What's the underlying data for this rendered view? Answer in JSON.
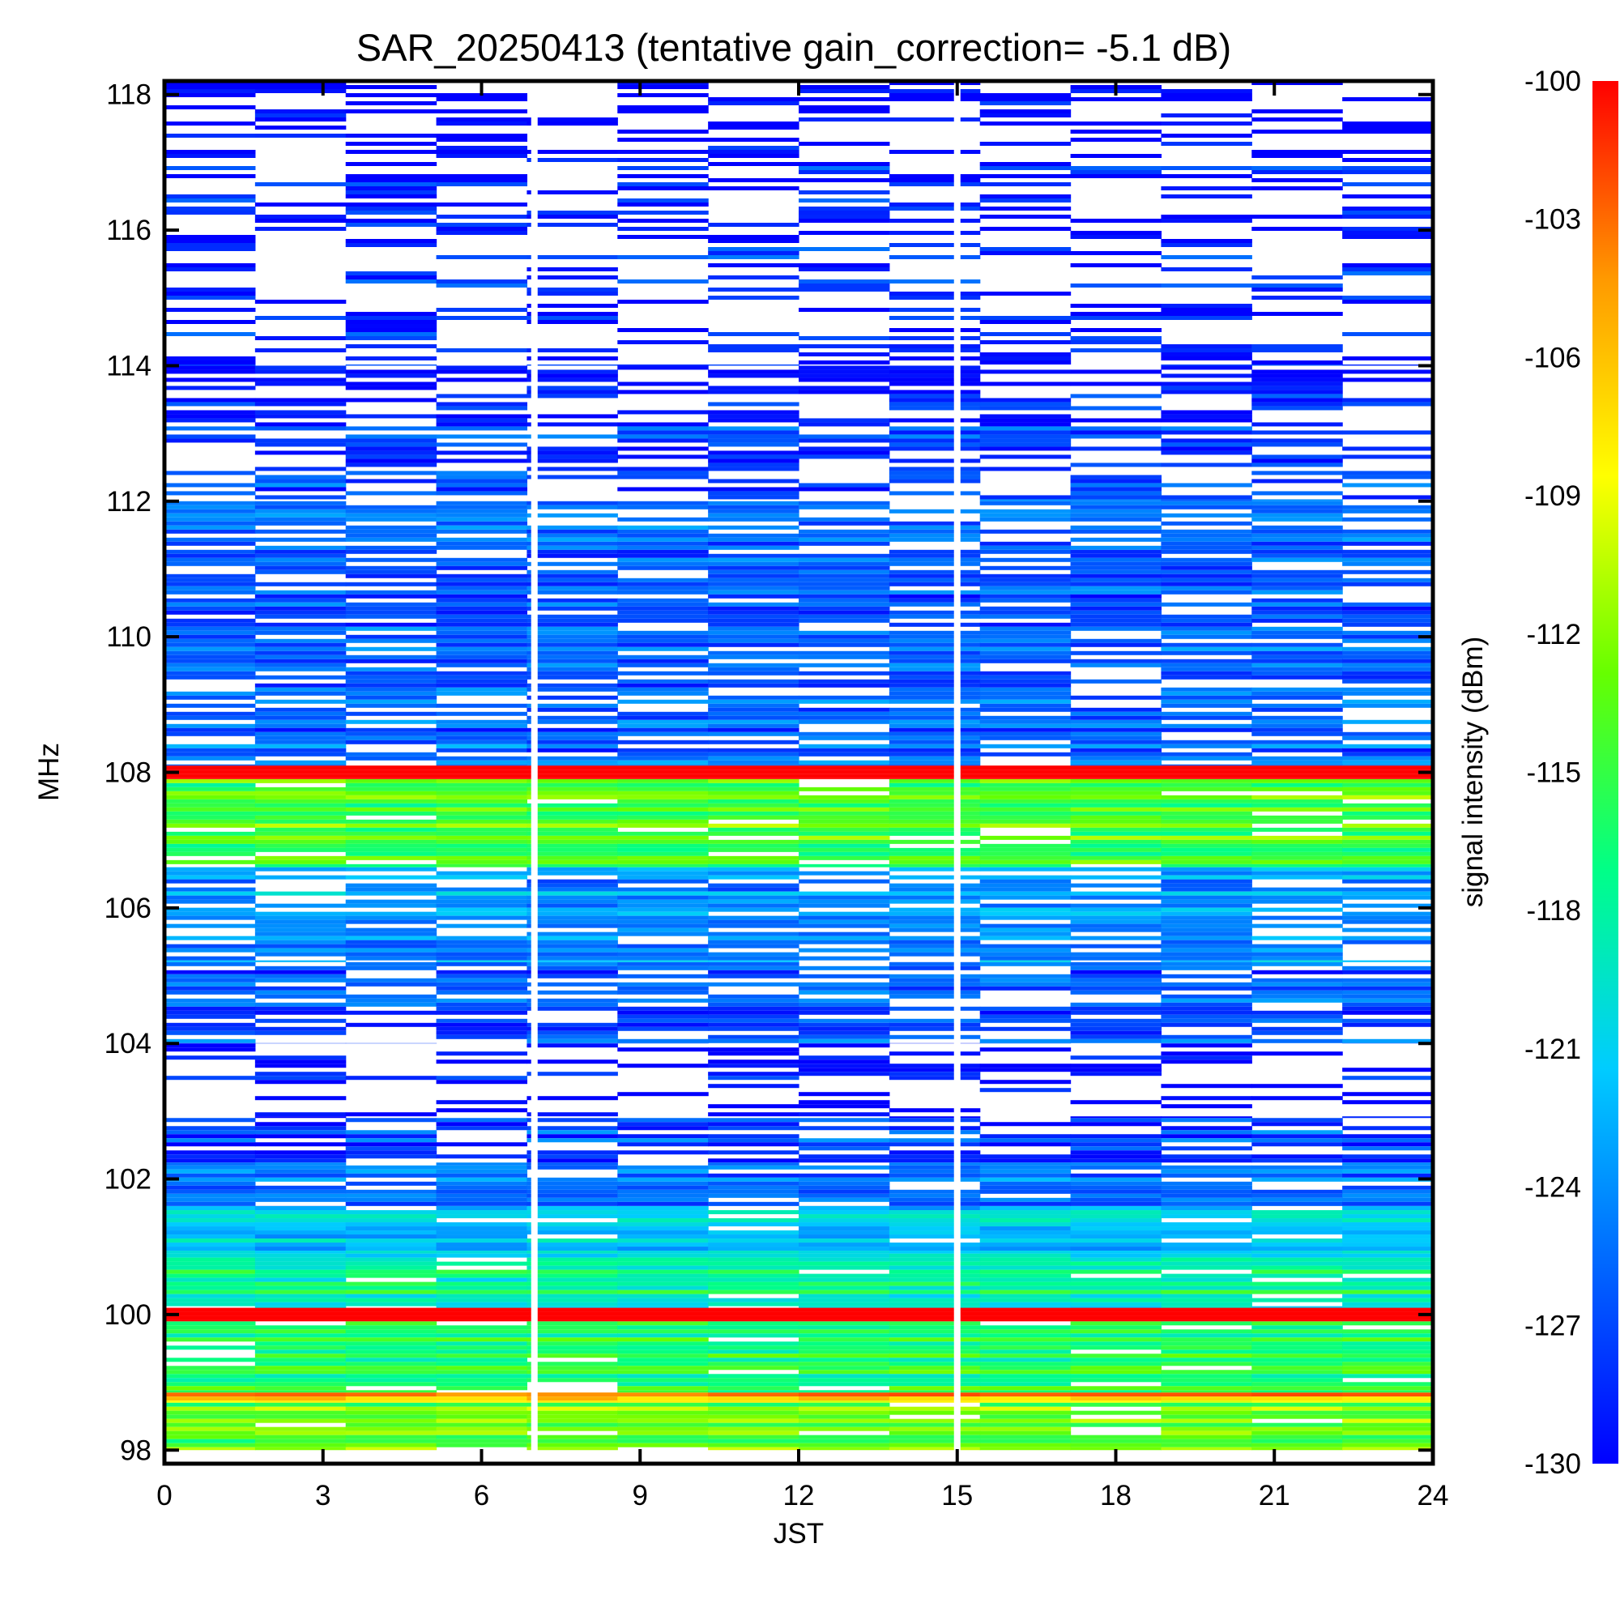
{
  "chart_data": {
    "type": "heatmap",
    "title": "SAR_20250413 (tentative gain_correction= -5.1 dB)",
    "xlabel": "JST",
    "ylabel": "MHz",
    "colorbar_label": "signal intensity (dBm)",
    "xlim": [
      0,
      24
    ],
    "ylim": [
      97.8,
      118.2
    ],
    "x_ticks": [
      "0",
      "3",
      "6",
      "9",
      "12",
      "15",
      "18",
      "21",
      "24"
    ],
    "y_ticks": [
      "98",
      "100",
      "102",
      "104",
      "106",
      "108",
      "110",
      "112",
      "114",
      "116",
      "118"
    ],
    "colorbar_range": [
      -130,
      -100
    ],
    "colorbar_ticks": [
      "-100",
      "-103",
      "-106",
      "-109",
      "-112",
      "-115",
      "-118",
      "-121",
      "-124",
      "-127",
      "-130"
    ],
    "colormap": [
      "#0000ff",
      "#0066ff",
      "#00ccff",
      "#00ff88",
      "#66ff00",
      "#ffff00",
      "#ff9900",
      "#ff0000"
    ],
    "data_gaps_jst": [
      7.0,
      15.0
    ],
    "grid": false,
    "bands": [
      {
        "f0": 98.0,
        "f1": 98.7,
        "dbm": -113,
        "noise": 0.06
      },
      {
        "f0": 98.7,
        "f1": 98.85,
        "dbm": -106,
        "noise": 0.03
      },
      {
        "f0": 98.85,
        "f1": 99.9,
        "dbm": -116,
        "noise": 0.05
      },
      {
        "f0": 99.9,
        "f1": 100.1,
        "dbm": -100,
        "noise": 0.0
      },
      {
        "f0": 100.1,
        "f1": 100.9,
        "dbm": -118,
        "noise": 0.06
      },
      {
        "f0": 100.9,
        "f1": 101.6,
        "dbm": -122,
        "noise": 0.08
      },
      {
        "f0": 101.6,
        "f1": 102.2,
        "dbm": -125,
        "noise": 0.12
      },
      {
        "f0": 102.2,
        "f1": 102.9,
        "dbm": -127,
        "noise": 0.25
      },
      {
        "f0": 102.9,
        "f1": 104.0,
        "dbm": -130,
        "noise": 0.7
      },
      {
        "f0": 104.0,
        "f1": 105.2,
        "dbm": -127,
        "noise": 0.25
      },
      {
        "f0": 105.2,
        "f1": 106.6,
        "dbm": -124,
        "noise": 0.22
      },
      {
        "f0": 106.6,
        "f1": 107.9,
        "dbm": -114,
        "noise": 0.08
      },
      {
        "f0": 107.9,
        "f1": 108.1,
        "dbm": -100,
        "noise": 0.0
      },
      {
        "f0": 108.1,
        "f1": 112.0,
        "dbm": -126,
        "noise": 0.22
      },
      {
        "f0": 112.0,
        "f1": 114.0,
        "dbm": -128,
        "noise": 0.45
      },
      {
        "f0": 114.0,
        "f1": 118.2,
        "dbm": -129,
        "noise": 0.65
      }
    ]
  }
}
